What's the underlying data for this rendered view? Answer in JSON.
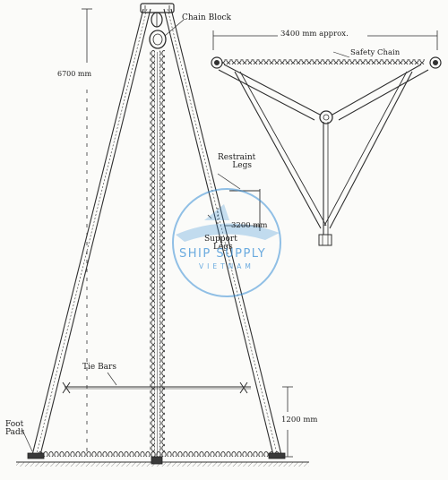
{
  "colors": {
    "ink": "#2a2a2a",
    "light_ink": "#6a6a6a",
    "paper": "#fbfbf9",
    "watermark": "#3a8fd6"
  },
  "labels": {
    "chain_block": "Chain Block",
    "height_dim": "6700 mm",
    "span_dim": "3400 mm approx.",
    "safety_chain": "Safety Chain",
    "restraint_legs_line1": "Restraint",
    "restraint_legs_line2": "Legs",
    "support_legs_line1": "Support",
    "support_legs_line2": "Legs",
    "support_dim": "3200 mm",
    "tie_bars": "Tie Bars",
    "tie_height_dim": "1200 mm",
    "foot_pads_line1": "Foot",
    "foot_pads_line2": "Pads"
  },
  "watermark": {
    "line1": "SHIP SUPPLY",
    "line2": "VIETNAM"
  }
}
